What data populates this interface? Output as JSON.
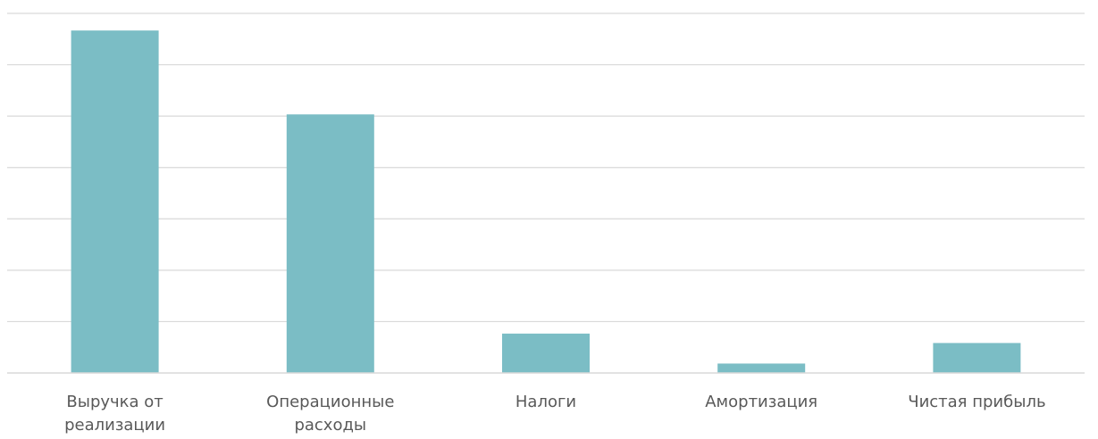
{
  "chart_data": {
    "type": "bar",
    "categories": [
      [
        "Выручка от",
        "реализации"
      ],
      [
        "Операционные",
        "расходы"
      ],
      [
        "Налоги"
      ],
      [
        "Амортизация"
      ],
      [
        "Чистая прибыль"
      ]
    ],
    "values": [
      100,
      75.5,
      11.5,
      2.75,
      8.75
    ],
    "ylim": [
      0,
      105
    ],
    "grid": true,
    "y_tick_labels_shown": false,
    "bar_color": "#7bbdc5",
    "grid_color": "#d9d9d9",
    "label_color": "#595959"
  }
}
